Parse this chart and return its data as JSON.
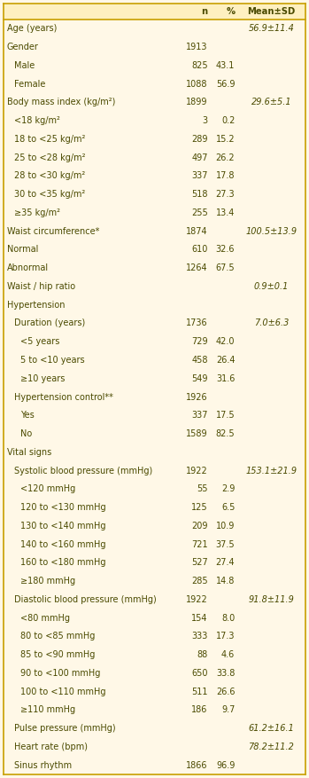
{
  "bg_color": "#FFF8E7",
  "header_color": "#FEF0C0",
  "border_color": "#C8A000",
  "text_color": "#4A4A00",
  "rows": [
    {
      "label": "Age (years)",
      "indent": 0,
      "n": "",
      "pct": "",
      "mean": "56.9±11.4"
    },
    {
      "label": "Gender",
      "indent": 0,
      "n": "1913",
      "pct": "",
      "mean": ""
    },
    {
      "label": "Male",
      "indent": 1,
      "n": "825",
      "pct": "43.1",
      "mean": ""
    },
    {
      "label": "Female",
      "indent": 1,
      "n": "1088",
      "pct": "56.9",
      "mean": ""
    },
    {
      "label": "Body mass index (kg/m²)",
      "indent": 0,
      "n": "1899",
      "pct": "",
      "mean": "29.6±5.1"
    },
    {
      "label": "<18 kg/m²",
      "indent": 1,
      "n": "3",
      "pct": "0.2",
      "mean": ""
    },
    {
      "label": "18 to <25 kg/m²",
      "indent": 1,
      "n": "289",
      "pct": "15.2",
      "mean": ""
    },
    {
      "label": "25 to <28 kg/m²",
      "indent": 1,
      "n": "497",
      "pct": "26.2",
      "mean": ""
    },
    {
      "label": "28 to <30 kg/m²",
      "indent": 1,
      "n": "337",
      "pct": "17.8",
      "mean": ""
    },
    {
      "label": "30 to <35 kg/m²",
      "indent": 1,
      "n": "518",
      "pct": "27.3",
      "mean": ""
    },
    {
      "label": "≥35 kg/m²",
      "indent": 1,
      "n": "255",
      "pct": "13.4",
      "mean": ""
    },
    {
      "label": "Waist circumference*",
      "indent": 0,
      "n": "1874",
      "pct": "",
      "mean": "100.5±13.9"
    },
    {
      "label": "Normal",
      "indent": 0,
      "n": "610",
      "pct": "32.6",
      "mean": ""
    },
    {
      "label": "Abnormal",
      "indent": 0,
      "n": "1264",
      "pct": "67.5",
      "mean": ""
    },
    {
      "label": "Waist / hip ratio",
      "indent": 0,
      "n": "",
      "pct": "",
      "mean": "0.9±0.1"
    },
    {
      "label": "Hypertension",
      "indent": 0,
      "n": "",
      "pct": "",
      "mean": ""
    },
    {
      "label": "Duration (years)",
      "indent": 1,
      "n": "1736",
      "pct": "",
      "mean": "7.0±6.3"
    },
    {
      "label": "<5 years",
      "indent": 2,
      "n": "729",
      "pct": "42.0",
      "mean": ""
    },
    {
      "label": "5 to <10 years",
      "indent": 2,
      "n": "458",
      "pct": "26.4",
      "mean": ""
    },
    {
      "label": "≥10 years",
      "indent": 2,
      "n": "549",
      "pct": "31.6",
      "mean": ""
    },
    {
      "label": "Hypertension control**",
      "indent": 1,
      "n": "1926",
      "pct": "",
      "mean": ""
    },
    {
      "label": "Yes",
      "indent": 2,
      "n": "337",
      "pct": "17.5",
      "mean": ""
    },
    {
      "label": "No",
      "indent": 2,
      "n": "1589",
      "pct": "82.5",
      "mean": ""
    },
    {
      "label": "Vital signs",
      "indent": 0,
      "n": "",
      "pct": "",
      "mean": ""
    },
    {
      "label": "Systolic blood pressure (mmHg)",
      "indent": 1,
      "n": "1922",
      "pct": "",
      "mean": "153.1±21.9"
    },
    {
      "label": "<120 mmHg",
      "indent": 2,
      "n": "55",
      "pct": "2.9",
      "mean": ""
    },
    {
      "label": "120 to <130 mmHg",
      "indent": 2,
      "n": "125",
      "pct": "6.5",
      "mean": ""
    },
    {
      "label": "130 to <140 mmHg",
      "indent": 2,
      "n": "209",
      "pct": "10.9",
      "mean": ""
    },
    {
      "label": "140 to <160 mmHg",
      "indent": 2,
      "n": "721",
      "pct": "37.5",
      "mean": ""
    },
    {
      "label": "160 to <180 mmHg",
      "indent": 2,
      "n": "527",
      "pct": "27.4",
      "mean": ""
    },
    {
      "label": "≥180 mmHg",
      "indent": 2,
      "n": "285",
      "pct": "14.8",
      "mean": ""
    },
    {
      "label": "Diastolic blood pressure (mmHg)",
      "indent": 1,
      "n": "1922",
      "pct": "",
      "mean": "91.8±11.9"
    },
    {
      "label": "<80 mmHg",
      "indent": 2,
      "n": "154",
      "pct": "8.0",
      "mean": ""
    },
    {
      "label": "80 to <85 mmHg",
      "indent": 2,
      "n": "333",
      "pct": "17.3",
      "mean": ""
    },
    {
      "label": "85 to <90 mmHg",
      "indent": 2,
      "n": "88",
      "pct": "4.6",
      "mean": ""
    },
    {
      "label": "90 to <100 mmHg",
      "indent": 2,
      "n": "650",
      "pct": "33.8",
      "mean": ""
    },
    {
      "label": "100 to <110 mmHg",
      "indent": 2,
      "n": "511",
      "pct": "26.6",
      "mean": ""
    },
    {
      "label": "≥110 mmHg",
      "indent": 2,
      "n": "186",
      "pct": "9.7",
      "mean": ""
    },
    {
      "label": "Pulse pressure (mmHg)",
      "indent": 1,
      "n": "",
      "pct": "",
      "mean": "61.2±16.1"
    },
    {
      "label": "Heart rate (bpm)",
      "indent": 1,
      "n": "",
      "pct": "",
      "mean": "78.2±11.2"
    },
    {
      "label": "Sinus rhythm",
      "indent": 1,
      "n": "1866",
      "pct": "96.9",
      "mean": ""
    }
  ],
  "indent_sizes": [
    0.0,
    0.022,
    0.044
  ],
  "font_size": 7.0,
  "header_font_size": 7.2
}
